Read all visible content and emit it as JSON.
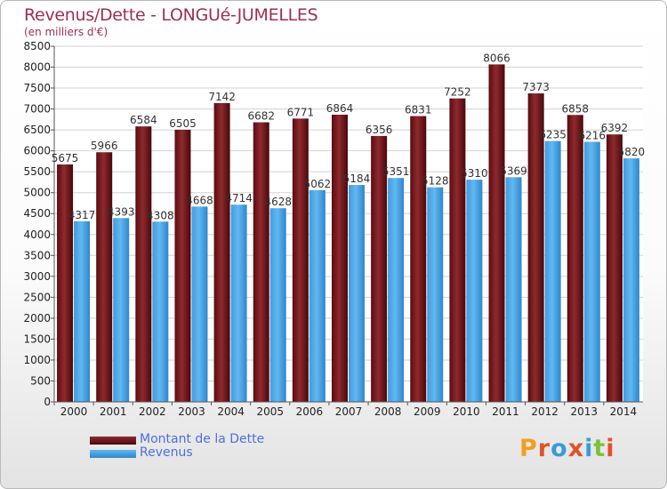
{
  "header": {
    "title": "Revenus/Dette - LONGUé-JUMELLES",
    "subtitle": "(en milliers d'€)"
  },
  "chart_data": {
    "type": "bar",
    "categories": [
      "2000",
      "2001",
      "2002",
      "2003",
      "2004",
      "2005",
      "2006",
      "2007",
      "2008",
      "2009",
      "2010",
      "2011",
      "2012",
      "2013",
      "2014"
    ],
    "series": [
      {
        "name": "Montant de la Dette",
        "color": "#7a1e22",
        "values": [
          5675,
          5966,
          6584,
          6505,
          7142,
          6682,
          6771,
          6864,
          6356,
          6831,
          7252,
          8066,
          7373,
          6858,
          6392
        ]
      },
      {
        "name": "Revenus",
        "color": "#4da6e8",
        "values": [
          4317,
          4393,
          4308,
          4668,
          4714,
          4628,
          5062,
          5184,
          5351,
          5128,
          5310,
          5369,
          6235,
          6216,
          5820
        ]
      }
    ],
    "ylim": [
      0,
      8500
    ],
    "yticks": [
      0,
      500,
      1000,
      1500,
      2000,
      2500,
      3000,
      3500,
      4000,
      4500,
      5000,
      5500,
      6000,
      6500,
      7000,
      7500,
      8000,
      8500
    ],
    "legend_position": "bottom-left",
    "grid": true
  },
  "logo": {
    "text": "Proxiti",
    "letter_colors": [
      "#f0a020",
      "#e0522a",
      "#3a9ad9",
      "#e0522a",
      "#3a9ad9",
      "#7cc13b",
      "#e0522a"
    ]
  }
}
